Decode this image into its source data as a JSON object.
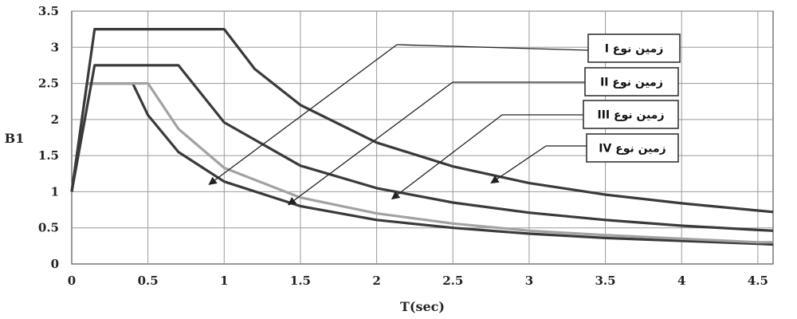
{
  "chart_data": {
    "type": "line",
    "title": "",
    "xlabel": "T(sec)",
    "ylabel": "B1",
    "xlim": [
      0,
      4.6
    ],
    "ylim": [
      0,
      3.5
    ],
    "x_ticks": [
      "0",
      "0.5",
      "1",
      "1.5",
      "2",
      "2.5",
      "3",
      "3.5",
      "4",
      "4.5"
    ],
    "y_ticks": [
      "0",
      "0.5",
      "1",
      "1.5",
      "2",
      "2.5",
      "3",
      "3.5"
    ],
    "grid": true,
    "legend_placement": "top-right",
    "series": [
      {
        "name": "زمین نوع I",
        "color": "#3a3a3a",
        "x": [
          0,
          0.1,
          0.4,
          0.5,
          0.7,
          1.0,
          1.5,
          2.0,
          2.5,
          3.0,
          3.5,
          4.0,
          4.5,
          4.6
        ],
        "y": [
          1.0,
          2.5,
          2.5,
          2.06,
          1.55,
          1.14,
          0.8,
          0.61,
          0.5,
          0.42,
          0.36,
          0.32,
          0.28,
          0.27
        ]
      },
      {
        "name": "زمین نوع II",
        "color": "#a2a2a2",
        "x": [
          0,
          0.1,
          0.5,
          0.7,
          1.0,
          1.5,
          2.0,
          2.5,
          3.0,
          3.5,
          4.0,
          4.5,
          4.6
        ],
        "y": [
          1.0,
          2.5,
          2.5,
          1.87,
          1.33,
          0.92,
          0.7,
          0.56,
          0.46,
          0.4,
          0.35,
          0.3,
          0.3
        ]
      },
      {
        "name": "زمین نوع III",
        "color": "#3a3a3a",
        "x": [
          0,
          0.15,
          0.7,
          1.0,
          1.5,
          2.0,
          2.5,
          3.0,
          3.5,
          4.0,
          4.5,
          4.6
        ],
        "y": [
          1.0,
          2.75,
          2.75,
          1.96,
          1.36,
          1.05,
          0.85,
          0.71,
          0.61,
          0.53,
          0.47,
          0.46
        ]
      },
      {
        "name": "زمین نوع IV",
        "color": "#3a3a3a",
        "x": [
          0,
          0.15,
          1.0,
          1.2,
          1.5,
          2.0,
          2.5,
          3.0,
          3.5,
          4.0,
          4.5,
          4.6
        ],
        "y": [
          1.0,
          3.25,
          3.25,
          2.7,
          2.2,
          1.68,
          1.35,
          1.12,
          0.96,
          0.84,
          0.74,
          0.72
        ]
      }
    ],
    "annotations": [
      {
        "label": "زمین نوع I",
        "series_index": 0,
        "arrow_to": [
          0.9,
          1.1
        ]
      },
      {
        "label": "زمین نوع II",
        "series_index": 1,
        "arrow_to": [
          1.42,
          0.82
        ]
      },
      {
        "label": "زمین نوع III",
        "series_index": 2,
        "arrow_to": [
          2.1,
          0.9
        ]
      },
      {
        "label": "زمین نوع IV",
        "series_index": 3,
        "arrow_to": [
          2.75,
          1.12
        ]
      }
    ]
  }
}
